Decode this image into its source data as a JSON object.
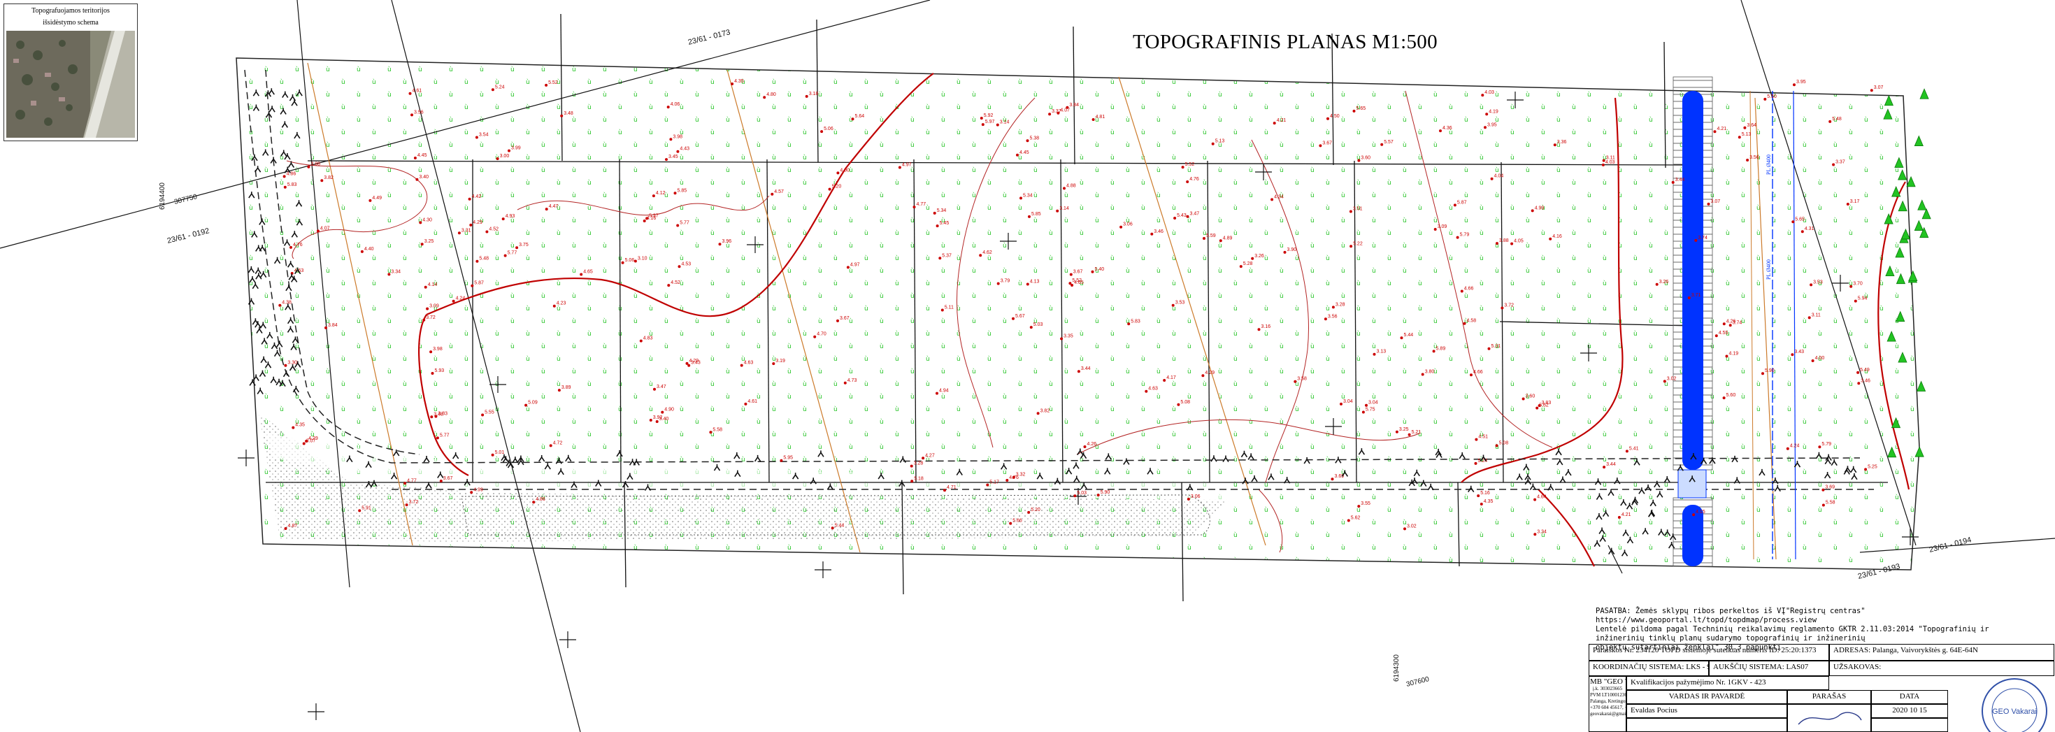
{
  "title": "TOPOGRAFINIS PLANAS M1:500",
  "inset": {
    "title_line1": "Topografuojamos teritorijos",
    "title_line2": "išsidėstymo schema"
  },
  "map_labels": {
    "parcel_top": "23/61 - 0173",
    "parcel_left": "23/61 - 0192",
    "parcel_right_a": "23/61 - 0194",
    "parcel_right_b": "23/61 - 0193",
    "coord_left": "6194400",
    "coord_left_b": "307750",
    "coord_bottom": "6194300",
    "coord_bottom_b": "307600"
  },
  "legend": {
    "line1": "PASATBA: Žemės sklypų ribos perkeltos iš VĮ\"Registrų centras\"",
    "line2": "https://www.geoportal.lt/topd/topdmap/process.view",
    "line3": "Lentelė pildoma pagal Techninių reikalavimų reglamento GKTR 2.11.03:2014 \"Topografinių ir inžinerinių tinklų planų sudarymo topografinių ir inžinerinių",
    "line4": "objektų sutartiniai ženklai\" 30.3 papunktį"
  },
  "title_block": {
    "row1_left": "Paraiškos Nr. 234120  TOPD sistemoje suteiktas numeris ID: 25:20:1373",
    "row1_right": "ADRESAS: Palanga, Vaivorykštės g. 64E-64N",
    "row2_a": "KOORDINAČIŲ SISTEMA: LKS - 94",
    "row2_b": "AUKŠČIŲ SISTEMA: LAS07",
    "row2_c": "UŽSAKOVAS:",
    "company": "MB \"GEO Vakarai\"",
    "company_small1": "į.k. 303023665",
    "company_small2": "PVM LT100012360223",
    "company_small3": "Palanga, Kretingos g. 74",
    "company_small4": "+370 604 45617, +370 637 69598",
    "company_small5": "geovakarai@gmail.com",
    "qualification": "Kvalifikacijos pažymėjimo Nr. 1GKV - 423",
    "col_name": "VARDAS IR PAVARDĖ",
    "col_sign": "PARAŠAS",
    "col_date": "DATA",
    "surveyor": "Evaldas Pocius",
    "date": "2020 10 15",
    "seal_text": "MB GEO Vakarai"
  },
  "colors": {
    "vegetation": "#22c322",
    "elevation_red": "#cc0000",
    "contour": "#b32424",
    "ditch_blue": "#0033ff",
    "orange_line": "#cc7a2a"
  }
}
